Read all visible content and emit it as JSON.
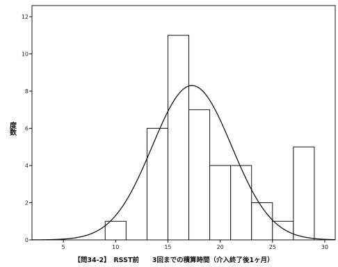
{
  "chart_data": {
    "type": "bar",
    "subtype": "histogram",
    "xlabel": "【問34-2】　RSST前　　3回までの積算時間（介入終了後1ヶ月）",
    "ylabel": "度数",
    "xlim": [
      2,
      31
    ],
    "ylim": [
      0,
      12.6
    ],
    "xticks": [
      5,
      10,
      15,
      20,
      25,
      30
    ],
    "yticks": [
      0,
      2,
      4,
      6,
      8,
      10,
      12
    ],
    "bins": [
      {
        "start": 9,
        "end": 11,
        "count": 1
      },
      {
        "start": 11,
        "end": 13,
        "count": 0
      },
      {
        "start": 13,
        "end": 15,
        "count": 6
      },
      {
        "start": 15,
        "end": 17,
        "count": 11
      },
      {
        "start": 17,
        "end": 19,
        "count": 7
      },
      {
        "start": 19,
        "end": 21,
        "count": 4
      },
      {
        "start": 21,
        "end": 23,
        "count": 4
      },
      {
        "start": 23,
        "end": 25,
        "count": 2
      },
      {
        "start": 25,
        "end": 27,
        "count": 1
      },
      {
        "start": 27,
        "end": 29,
        "count": 5
      }
    ],
    "normal_curve": {
      "mean": 17.3,
      "sd": 3.8,
      "peak": 8.3
    },
    "colors": {
      "bar_fill": "#ffffff",
      "bar_stroke": "#111111",
      "curve": "#111111",
      "axis": "#111111"
    }
  }
}
